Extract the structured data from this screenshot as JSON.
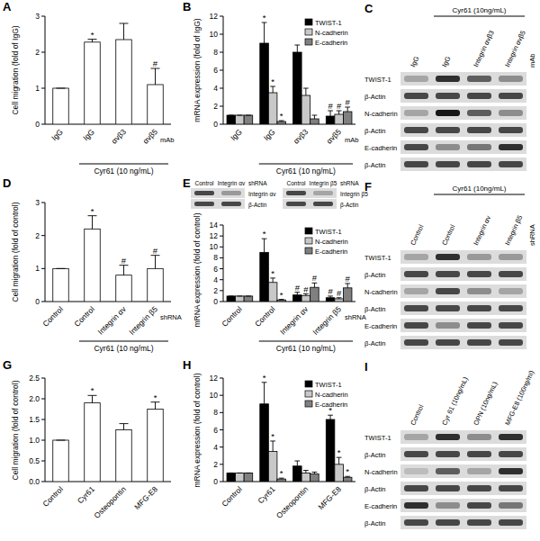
{
  "chart_data": [
    {
      "type": "bar",
      "title": "A",
      "y_label": "Cell migration (fold of IgG)",
      "categories": [
        "IgG",
        "IgG",
        "αvβ3",
        "αvβ5"
      ],
      "x_label": "mAb",
      "group_label": "Cyr61 (10 ng/mL)",
      "group_range": [
        1,
        3
      ],
      "values": [
        1,
        2.28,
        2.35,
        1.1
      ],
      "errors": [
        0,
        0.08,
        0.45,
        0.45
      ],
      "significance": [
        null,
        "*",
        null,
        "#"
      ],
      "color": "#ffffff",
      "ylim": [
        0,
        3
      ],
      "yticks": [
        0,
        1,
        2,
        3
      ]
    },
    {
      "type": "bar",
      "title": "B",
      "y_label": "mRNA expression (fold of IgG)",
      "categories": [
        "IgG",
        "IgG",
        "αvβ3",
        "αvβ5"
      ],
      "x_label": "mAb",
      "group_label": "Cyr61 (10 ng/mL)",
      "group_range": [
        1,
        3
      ],
      "legend": "upper right",
      "series": [
        {
          "name": "TWIST-1",
          "color": "#000000",
          "values": [
            1,
            9,
            8,
            0.9
          ],
          "errors": [
            0,
            2.3,
            0.8,
            0.6
          ],
          "significance": [
            null,
            "*",
            null,
            "#"
          ]
        },
        {
          "name": "N-cadherin",
          "color": "#c8c8c8",
          "values": [
            1,
            3.5,
            3.2,
            1.1
          ],
          "errors": [
            0,
            0.7,
            0.8,
            0.4
          ],
          "significance": [
            null,
            "*",
            null,
            "#"
          ]
        },
        {
          "name": "E-cadherin",
          "color": "#808080",
          "values": [
            1,
            0.3,
            0.6,
            1.4
          ],
          "errors": [
            0,
            0.1,
            0.4,
            0.5
          ],
          "significance": [
            null,
            "*",
            null,
            "#"
          ]
        }
      ],
      "ylim": [
        0,
        12
      ],
      "yticks": [
        0,
        2,
        4,
        6,
        8,
        10,
        12
      ]
    },
    {
      "type": "bar",
      "title": "D",
      "y_label": "Cell migration (fold of control)",
      "categories": [
        "Control",
        "Control",
        "Integrin αv",
        "Integrin β5"
      ],
      "x_label": "shRNA",
      "group_label": "Cyr61 (10 ng/mL)",
      "group_range": [
        1,
        3
      ],
      "values": [
        1,
        2.2,
        0.8,
        1.0
      ],
      "errors": [
        0,
        0.4,
        0.3,
        0.4
      ],
      "significance": [
        null,
        "*",
        "#",
        "#"
      ],
      "color": "#ffffff",
      "ylim": [
        0,
        3
      ],
      "yticks": [
        0,
        1,
        2,
        3
      ]
    },
    {
      "type": "bar",
      "title": "E",
      "y_label": "mRNA expression (fold of control)",
      "categories": [
        "Control",
        "Control",
        "Integrin αv",
        "Integrin β5"
      ],
      "x_label": "shRNA",
      "group_label": "Cyr61 (10 ng/mL)",
      "group_range": [
        1,
        3
      ],
      "legend": "upper right",
      "series": [
        {
          "name": "TWIST-1",
          "color": "#000000",
          "values": [
            1,
            9,
            1.2,
            0.7
          ],
          "errors": [
            0,
            2.5,
            0.5,
            0.3
          ],
          "significance": [
            null,
            "*",
            "#",
            "#"
          ]
        },
        {
          "name": "N-cadherin",
          "color": "#c8c8c8",
          "values": [
            1,
            3.5,
            1.1,
            0.5
          ],
          "errors": [
            0,
            0.8,
            0.3,
            0.2
          ],
          "significance": [
            null,
            "*",
            "#",
            "#"
          ]
        },
        {
          "name": "E-cadherin",
          "color": "#808080",
          "values": [
            1,
            0.3,
            2.6,
            2.5
          ],
          "errors": [
            0,
            0.1,
            0.8,
            0.8
          ],
          "significance": [
            null,
            "*",
            "#",
            "#"
          ]
        }
      ],
      "ylim": [
        0,
        14
      ],
      "yticks": [
        0,
        2,
        4,
        6,
        8,
        10,
        12,
        14
      ]
    },
    {
      "type": "bar",
      "title": "G",
      "y_label": "Cell migration (fold of control)",
      "categories": [
        "Control",
        "Cyr61",
        "Osteopontin",
        "MFG-E8"
      ],
      "values": [
        1,
        1.9,
        1.25,
        1.75
      ],
      "errors": [
        0,
        0.18,
        0.15,
        0.17
      ],
      "significance": [
        null,
        "*",
        null,
        "*"
      ],
      "color": "#ffffff",
      "ylim": [
        0,
        2.5
      ],
      "yticks": [
        {
          "value": 0,
          "label": "0.0"
        },
        {
          "value": 0.5,
          "label": "0.5"
        },
        {
          "value": 1,
          "label": "1.0"
        },
        {
          "value": 1.5,
          "label": "1.5"
        },
        {
          "value": 2,
          "label": "2.0"
        },
        {
          "value": 2.5,
          "label": "2.5"
        }
      ]
    },
    {
      "type": "bar",
      "title": "H",
      "y_label": "mRNA expression (fold of control)",
      "categories": [
        "Control",
        "Cyr61",
        "Osteopontin",
        "MFG-E8"
      ],
      "legend": "upper right",
      "series": [
        {
          "name": "TWIST-1",
          "color": "#000000",
          "values": [
            1,
            9,
            1.8,
            7.2
          ],
          "errors": [
            0,
            2.5,
            0.6,
            0.5
          ],
          "significance": [
            null,
            "*",
            null,
            "*"
          ]
        },
        {
          "name": "N-cadherin",
          "color": "#c8c8c8",
          "values": [
            1,
            3.5,
            1,
            2
          ],
          "errors": [
            0,
            1.2,
            0.3,
            0.8
          ],
          "significance": [
            null,
            "*",
            null,
            "*"
          ]
        },
        {
          "name": "E-cadherin",
          "color": "#808080",
          "values": [
            1,
            0.3,
            0.9,
            0.5
          ],
          "errors": [
            0,
            0.1,
            0.2,
            0.1
          ],
          "significance": [
            null,
            "*",
            null,
            "*"
          ]
        }
      ],
      "ylim": [
        0,
        12
      ],
      "yticks": [
        0,
        2,
        4,
        6,
        8,
        10,
        12
      ]
    }
  ],
  "blots": [
    {
      "title": "C",
      "header": "Cyr61 (10ng/mL)",
      "header_lanes": [
        1,
        3
      ],
      "lanes": [
        "IgG",
        "IgG",
        "Integrin αvβ3",
        "Integrin αvβ5"
      ],
      "lane_suffix": "mAb",
      "rows": [
        {
          "label": "TWIST-1",
          "bands": [
            0.3,
            0.8,
            0.6,
            0.4
          ]
        },
        {
          "label": "β-Actin",
          "bands": [
            0.7,
            0.7,
            0.7,
            0.7
          ]
        },
        {
          "label": "N-cadherin",
          "bands": [
            0.3,
            0.9,
            0.6,
            0.4
          ]
        },
        {
          "label": "β-Actin",
          "bands": [
            0.7,
            0.7,
            0.7,
            0.7
          ]
        },
        {
          "label": "E-cadherin",
          "bands": [
            0.7,
            0.4,
            0.5,
            0.8
          ]
        },
        {
          "label": "β-Actin",
          "bands": [
            0.7,
            0.7,
            0.7,
            0.7
          ]
        }
      ]
    },
    {
      "title": "F",
      "header": "Cyr61 (10ng/mL)",
      "header_lanes": [
        1,
        3
      ],
      "lanes": [
        "Control",
        "Control",
        "Integrin αv",
        "Integrin β5"
      ],
      "lane_suffix": "shRNA",
      "rows": [
        {
          "label": "TWIST-1",
          "bands": [
            0.3,
            0.8,
            0.35,
            0.35
          ]
        },
        {
          "label": "β-Actin",
          "bands": [
            0.7,
            0.7,
            0.7,
            0.7
          ]
        },
        {
          "label": "N-cadherin",
          "bands": [
            0.3,
            0.7,
            0.4,
            0.3
          ]
        },
        {
          "label": "β-Actin",
          "bands": [
            0.7,
            0.7,
            0.7,
            0.7
          ]
        },
        {
          "label": "E-cadherin",
          "bands": [
            0.7,
            0.4,
            0.7,
            0.7
          ]
        },
        {
          "label": "β-Actin",
          "bands": [
            0.7,
            0.7,
            0.7,
            0.7
          ]
        }
      ]
    },
    {
      "title": "I",
      "lanes": [
        "Control",
        "Cyr 61 (10ng/mL)",
        "OPN (10ng/mL)",
        "MFG-E8 (100ng/ml)"
      ],
      "rows": [
        {
          "label": "TWIST-1",
          "bands": [
            0.3,
            0.8,
            0.4,
            0.8
          ]
        },
        {
          "label": "β-Actin",
          "bands": [
            0.7,
            0.7,
            0.7,
            0.7
          ]
        },
        {
          "label": "N-cadherin",
          "bands": [
            0.2,
            0.6,
            0.3,
            0.8
          ]
        },
        {
          "label": "β-Actin",
          "bands": [
            0.7,
            0.7,
            0.7,
            0.7
          ]
        },
        {
          "label": "E-cadherin",
          "bands": [
            0.8,
            0.4,
            0.7,
            0.5
          ]
        },
        {
          "label": "β-Actin",
          "bands": [
            0.7,
            0.7,
            0.7,
            0.7
          ]
        }
      ]
    },
    {
      "lanes": [
        "Control",
        "Integrin αv"
      ],
      "lane_suffix": "shRNA",
      "rows": [
        {
          "label": "Integrin αv",
          "bands": [
            0.7,
            0.35
          ]
        },
        {
          "label": "β-Actin",
          "bands": [
            0.7,
            0.7
          ]
        }
      ]
    },
    {
      "lanes": [
        "Control",
        "Integrin β5"
      ],
      "lane_suffix": "shRNA",
      "rows": [
        {
          "label": "Integrin β5",
          "bands": [
            0.7,
            0.3
          ]
        },
        {
          "label": "β-Actin",
          "bands": [
            0.7,
            0.7
          ]
        }
      ]
    }
  ]
}
